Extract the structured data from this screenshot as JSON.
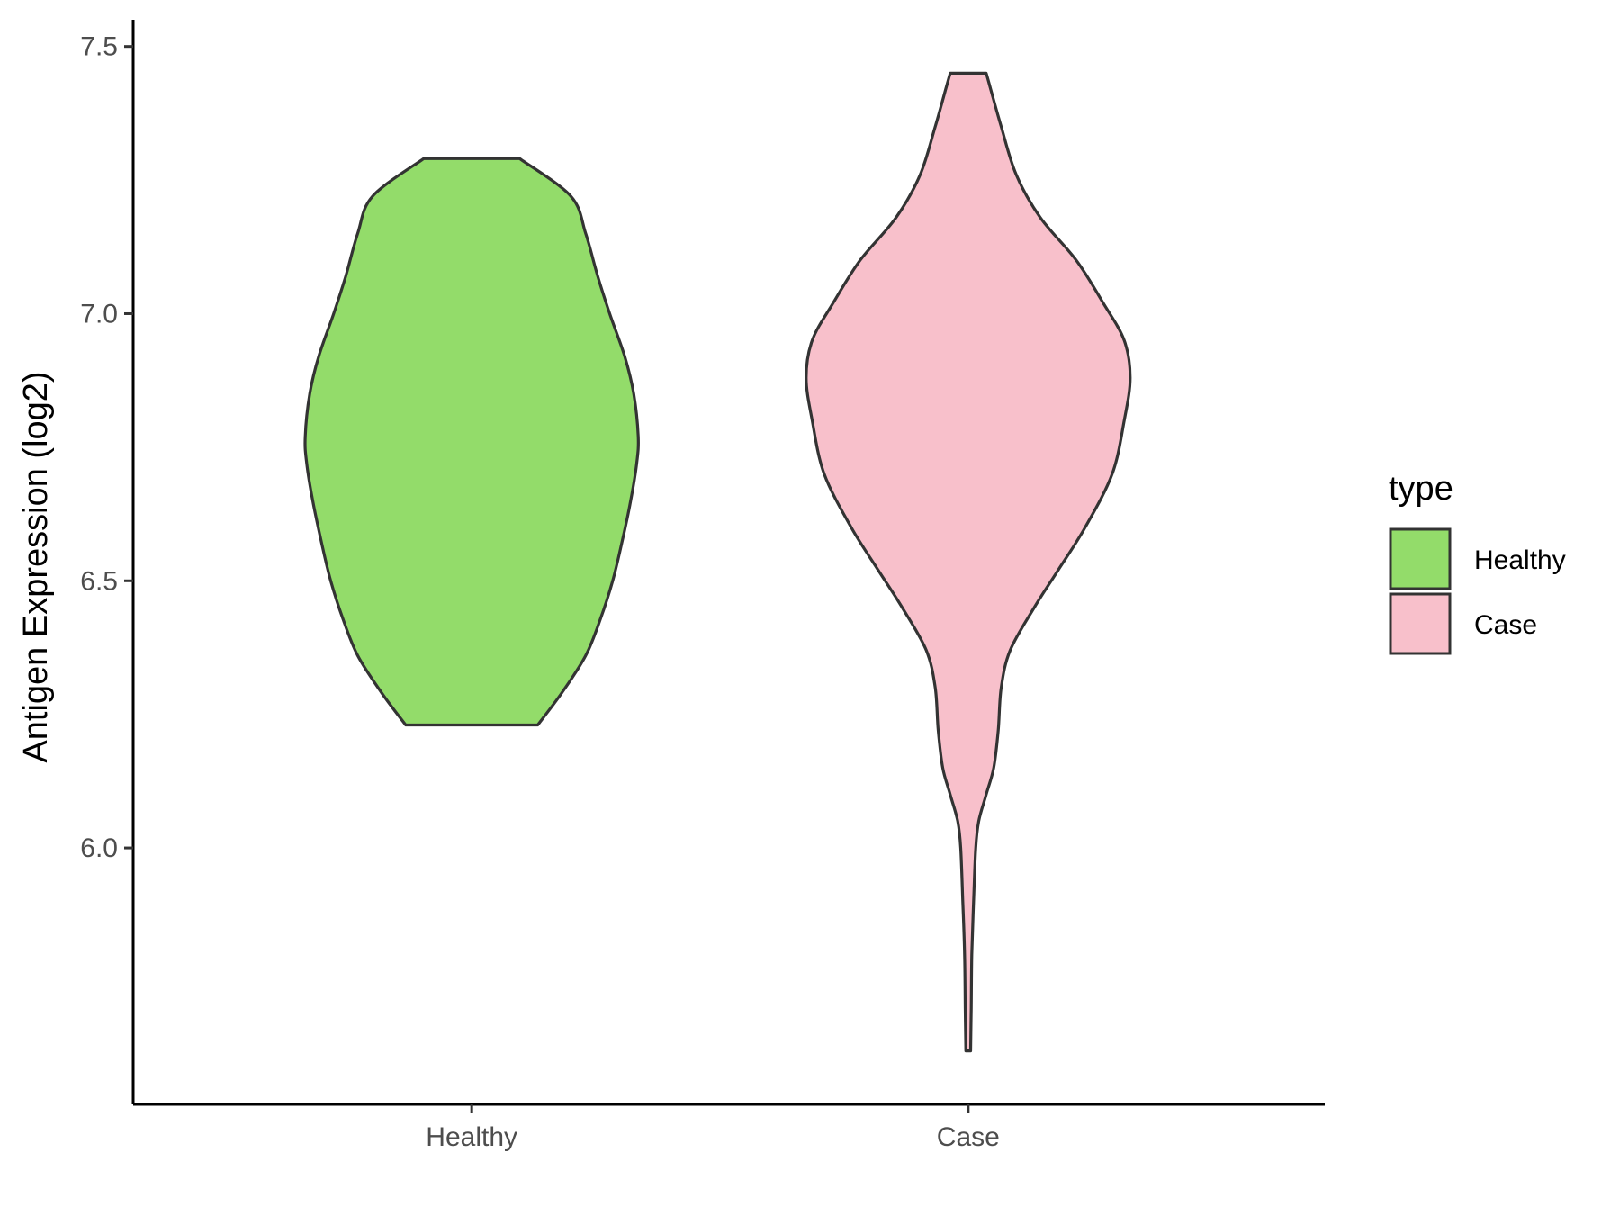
{
  "chart_data": {
    "type": "violin",
    "title": "",
    "xlabel": "",
    "ylabel": "Antigen Expression (log2)",
    "ylim": [
      5.52,
      7.55
    ],
    "yticks": [
      "6.0",
      "6.5",
      "7.0",
      "7.5"
    ],
    "categories": [
      "Healthy",
      "Case"
    ],
    "legend": {
      "title": "type",
      "position": "right",
      "entries": [
        {
          "label": "Healthy",
          "color": "#93DC6A"
        },
        {
          "label": "Case",
          "color": "#F8C0CB"
        }
      ]
    },
    "outline_color": "#333333",
    "series": [
      {
        "name": "Healthy",
        "color": "#93DC6A",
        "min": 6.23,
        "max": 7.29,
        "density": [
          [
            6.23,
            0.22
          ],
          [
            6.29,
            0.3
          ],
          [
            6.36,
            0.38
          ],
          [
            6.43,
            0.43
          ],
          [
            6.5,
            0.47
          ],
          [
            6.57,
            0.5
          ],
          [
            6.65,
            0.53
          ],
          [
            6.72,
            0.55
          ],
          [
            6.77,
            0.555
          ],
          [
            6.85,
            0.54
          ],
          [
            6.92,
            0.51
          ],
          [
            7.0,
            0.46
          ],
          [
            7.07,
            0.42
          ],
          [
            7.15,
            0.38
          ],
          [
            7.22,
            0.33
          ],
          [
            7.29,
            0.16
          ]
        ]
      },
      {
        "name": "Case",
        "color": "#F8C0CB",
        "min": 5.62,
        "max": 7.45,
        "density": [
          [
            5.62,
            0.008
          ],
          [
            5.7,
            0.01
          ],
          [
            5.8,
            0.012
          ],
          [
            5.9,
            0.018
          ],
          [
            6.0,
            0.025
          ],
          [
            6.05,
            0.035
          ],
          [
            6.1,
            0.06
          ],
          [
            6.15,
            0.085
          ],
          [
            6.22,
            0.1
          ],
          [
            6.3,
            0.11
          ],
          [
            6.37,
            0.14
          ],
          [
            6.45,
            0.22
          ],
          [
            6.52,
            0.3
          ],
          [
            6.6,
            0.39
          ],
          [
            6.7,
            0.48
          ],
          [
            6.8,
            0.52
          ],
          [
            6.88,
            0.54
          ],
          [
            6.95,
            0.52
          ],
          [
            7.02,
            0.45
          ],
          [
            7.1,
            0.36
          ],
          [
            7.18,
            0.24
          ],
          [
            7.26,
            0.16
          ],
          [
            7.35,
            0.11
          ],
          [
            7.42,
            0.075
          ],
          [
            7.45,
            0.06
          ]
        ]
      }
    ]
  }
}
